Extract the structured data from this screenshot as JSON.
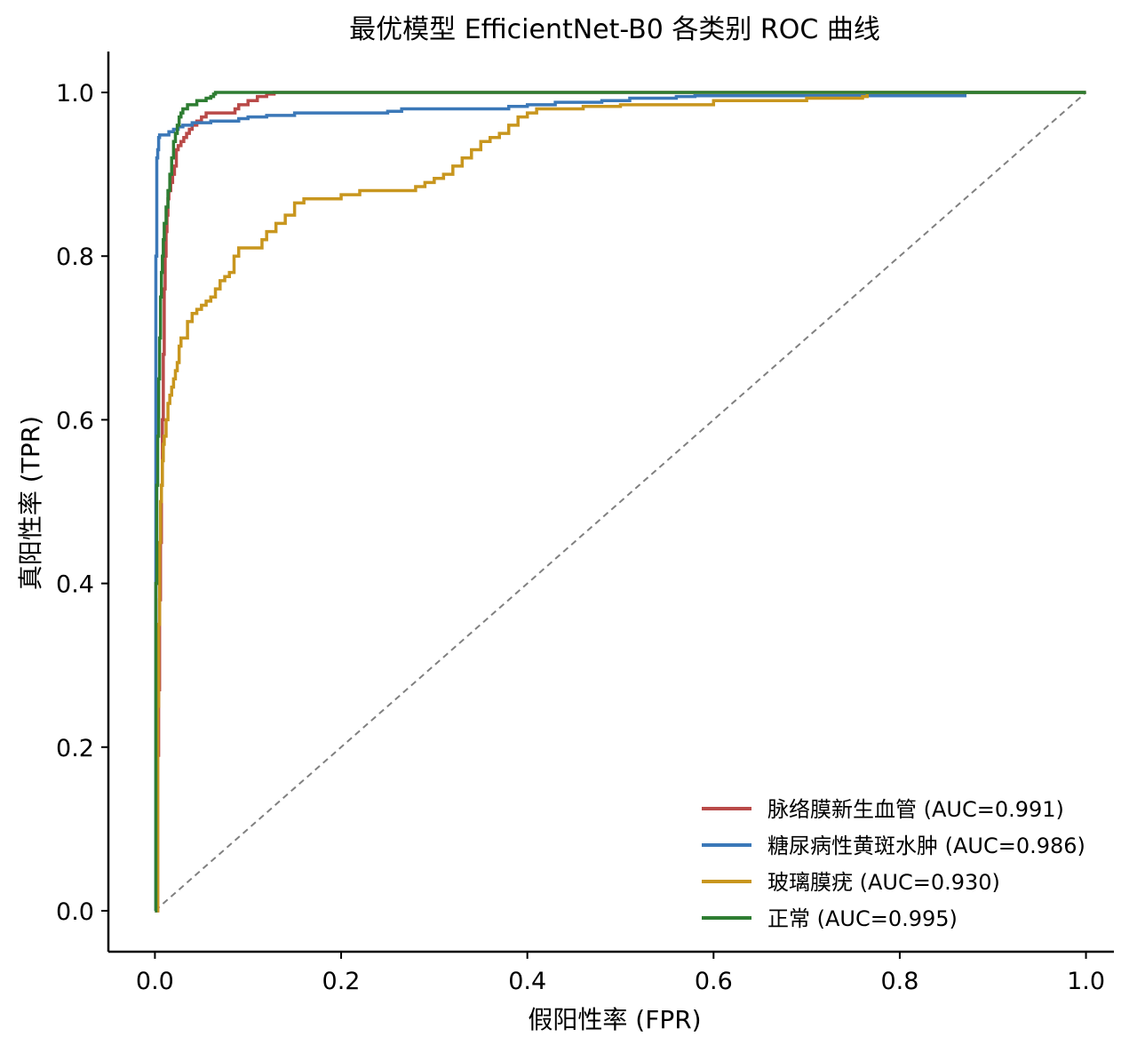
{
  "chart_data": {
    "type": "line",
    "title": "最优模型 EfficientNet-B0 各类别 ROC 曲线",
    "xlabel": "假阳性率 (FPR)",
    "ylabel": "真阳性率 (TPR)",
    "xlim": [
      -0.05,
      1.03
    ],
    "ylim": [
      -0.05,
      1.05
    ],
    "xticks": [
      "0.0",
      "0.2",
      "0.4",
      "0.6",
      "0.8",
      "1.0"
    ],
    "yticks": [
      "0.0",
      "0.2",
      "0.4",
      "0.6",
      "0.8",
      "1.0"
    ],
    "legend_position": "lower-right",
    "grid": false,
    "diagonal": {
      "x": [
        0,
        1
      ],
      "y": [
        0,
        1
      ],
      "color": "#808080",
      "style": "dashed"
    },
    "series": [
      {
        "name": "脉络膜新生血管 (AUC=0.991)",
        "color": "#b94a48",
        "x": [
          0,
          0.003,
          0.004,
          0.005,
          0.006,
          0.007,
          0.008,
          0.009,
          0.01,
          0.011,
          0.012,
          0.013,
          0.014,
          0.015,
          0.017,
          0.019,
          0.021,
          0.023,
          0.025,
          0.028,
          0.031,
          0.034,
          0.037,
          0.04,
          0.045,
          0.05,
          0.055,
          0.06,
          0.07,
          0.08,
          0.086,
          0.09,
          0.1,
          0.11,
          0.12,
          0.128,
          1.0
        ],
        "y": [
          0,
          0.19,
          0.27,
          0.38,
          0.45,
          0.52,
          0.6,
          0.68,
          0.76,
          0.8,
          0.83,
          0.85,
          0.87,
          0.88,
          0.89,
          0.9,
          0.91,
          0.93,
          0.935,
          0.94,
          0.945,
          0.95,
          0.955,
          0.96,
          0.965,
          0.97,
          0.975,
          0.975,
          0.975,
          0.975,
          0.98,
          0.985,
          0.99,
          0.995,
          0.998,
          1.0,
          1.0
        ]
      },
      {
        "name": "糖尿病性黄斑水肿 (AUC=0.986)",
        "color": "#3b78b8",
        "x": [
          0,
          0.001,
          0.001,
          0.002,
          0.003,
          0.004,
          0.005,
          0.01,
          0.015,
          0.02,
          0.025,
          0.03,
          0.04,
          0.06,
          0.08,
          0.09,
          0.1,
          0.12,
          0.15,
          0.18,
          0.2,
          0.25,
          0.265,
          0.3,
          0.35,
          0.38,
          0.4,
          0.42,
          0.43,
          0.48,
          0.5,
          0.51,
          0.56,
          0.58,
          0.62,
          0.7,
          0.75,
          0.8,
          0.87,
          0.87,
          1.0
        ],
        "y": [
          0,
          0.5,
          0.8,
          0.92,
          0.93,
          0.945,
          0.948,
          0.948,
          0.952,
          0.955,
          0.958,
          0.96,
          0.963,
          0.965,
          0.965,
          0.968,
          0.97,
          0.972,
          0.975,
          0.975,
          0.975,
          0.977,
          0.98,
          0.98,
          0.98,
          0.983,
          0.985,
          0.985,
          0.988,
          0.99,
          0.99,
          0.993,
          0.995,
          0.996,
          0.996,
          0.996,
          0.996,
          0.996,
          0.996,
          1.0,
          1.0
        ]
      },
      {
        "name": "玻璃膜疣 (AUC=0.930)",
        "color": "#c8961e",
        "x": [
          0,
          0.003,
          0.004,
          0.005,
          0.006,
          0.007,
          0.008,
          0.009,
          0.01,
          0.012,
          0.014,
          0.016,
          0.018,
          0.02,
          0.022,
          0.024,
          0.026,
          0.028,
          0.03,
          0.035,
          0.04,
          0.045,
          0.05,
          0.055,
          0.06,
          0.065,
          0.07,
          0.075,
          0.08,
          0.085,
          0.09,
          0.095,
          0.1,
          0.105,
          0.11,
          0.115,
          0.12,
          0.13,
          0.14,
          0.15,
          0.16,
          0.17,
          0.18,
          0.2,
          0.22,
          0.24,
          0.26,
          0.28,
          0.29,
          0.3,
          0.31,
          0.32,
          0.33,
          0.34,
          0.35,
          0.36,
          0.37,
          0.38,
          0.39,
          0.4,
          0.41,
          0.42,
          0.44,
          0.46,
          0.5,
          0.52,
          0.58,
          0.6,
          0.65,
          0.7,
          0.76,
          0.765,
          1.0
        ],
        "y": [
          0,
          0.25,
          0.35,
          0.45,
          0.5,
          0.52,
          0.55,
          0.57,
          0.58,
          0.6,
          0.62,
          0.63,
          0.64,
          0.65,
          0.66,
          0.67,
          0.69,
          0.7,
          0.7,
          0.72,
          0.73,
          0.735,
          0.74,
          0.745,
          0.75,
          0.76,
          0.77,
          0.775,
          0.78,
          0.8,
          0.81,
          0.81,
          0.81,
          0.81,
          0.81,
          0.82,
          0.83,
          0.84,
          0.85,
          0.865,
          0.87,
          0.87,
          0.87,
          0.875,
          0.88,
          0.88,
          0.88,
          0.885,
          0.89,
          0.895,
          0.9,
          0.91,
          0.92,
          0.93,
          0.94,
          0.945,
          0.95,
          0.96,
          0.97,
          0.975,
          0.98,
          0.98,
          0.98,
          0.983,
          0.985,
          0.985,
          0.985,
          0.99,
          0.99,
          0.993,
          0.995,
          1.0,
          1.0
        ]
      },
      {
        "name": "正常 (AUC=0.995)",
        "color": "#2e7d32",
        "x": [
          0,
          0.001,
          0.001,
          0.002,
          0.003,
          0.004,
          0.005,
          0.006,
          0.007,
          0.008,
          0.009,
          0.01,
          0.012,
          0.014,
          0.016,
          0.018,
          0.02,
          0.022,
          0.024,
          0.026,
          0.028,
          0.03,
          0.035,
          0.04,
          0.045,
          0.05,
          0.055,
          0.06,
          0.063,
          0.065,
          1.0
        ],
        "y": [
          0,
          0.2,
          0.4,
          0.52,
          0.58,
          0.65,
          0.7,
          0.75,
          0.78,
          0.8,
          0.82,
          0.84,
          0.86,
          0.88,
          0.9,
          0.92,
          0.94,
          0.95,
          0.96,
          0.97,
          0.975,
          0.98,
          0.985,
          0.985,
          0.99,
          0.99,
          0.993,
          0.995,
          0.998,
          1.0,
          1.0
        ]
      }
    ]
  }
}
